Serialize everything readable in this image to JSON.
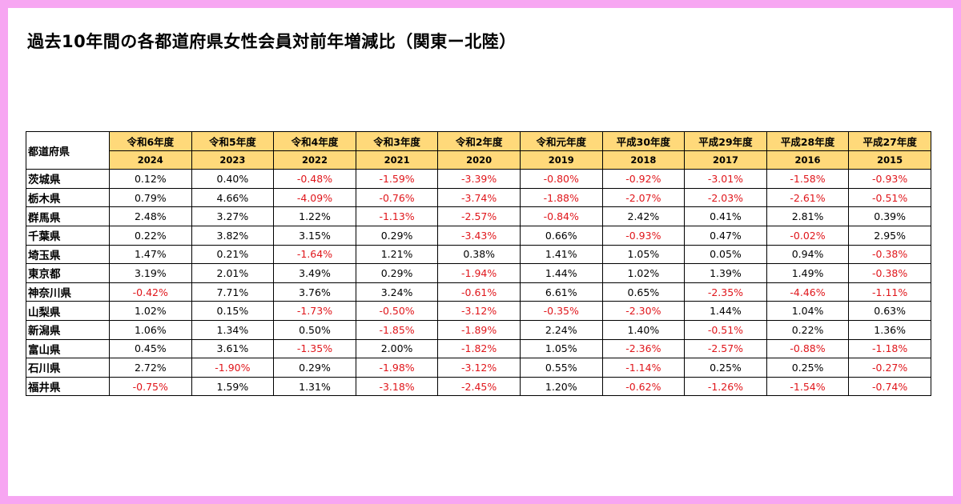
{
  "title": "過去10年間の各都道府県女性会員対前年増減比（関東ー北陸）",
  "table": {
    "corner_label": "都道府県",
    "eras": [
      "令和6年度",
      "令和5年度",
      "令和4年度",
      "令和3年度",
      "令和2年度",
      "令和元年度",
      "平成30年度",
      "平成29年度",
      "平成28年度",
      "平成27年度"
    ],
    "years": [
      "2024",
      "2023",
      "2022",
      "2021",
      "2020",
      "2019",
      "2018",
      "2017",
      "2016",
      "2015"
    ],
    "rows": [
      {
        "pref": "茨城県",
        "values": [
          "0.12%",
          "0.40%",
          "-0.48%",
          "-1.59%",
          "-3.39%",
          "-0.80%",
          "-0.92%",
          "-3.01%",
          "-1.58%",
          "-0.93%"
        ]
      },
      {
        "pref": "栃木県",
        "values": [
          "0.79%",
          "4.66%",
          "-4.09%",
          "-0.76%",
          "-3.74%",
          "-1.88%",
          "-2.07%",
          "-2.03%",
          "-2.61%",
          "-0.51%"
        ]
      },
      {
        "pref": "群馬県",
        "values": [
          "2.48%",
          "3.27%",
          "1.22%",
          "-1.13%",
          "-2.57%",
          "-0.84%",
          "2.42%",
          "0.41%",
          "2.81%",
          "0.39%"
        ]
      },
      {
        "pref": "千葉県",
        "values": [
          "0.22%",
          "3.82%",
          "3.15%",
          "0.29%",
          "-3.43%",
          "0.66%",
          "-0.93%",
          "0.47%",
          "-0.02%",
          "2.95%"
        ]
      },
      {
        "pref": "埼玉県",
        "values": [
          "1.47%",
          "0.21%",
          "-1.64%",
          "1.21%",
          "0.38%",
          "1.41%",
          "1.05%",
          "0.05%",
          "0.94%",
          "-0.38%"
        ]
      },
      {
        "pref": "東京都",
        "values": [
          "3.19%",
          "2.01%",
          "3.49%",
          "0.29%",
          "-1.94%",
          "1.44%",
          "1.02%",
          "1.39%",
          "1.49%",
          "-0.38%"
        ]
      },
      {
        "pref": "神奈川県",
        "values": [
          "-0.42%",
          "7.71%",
          "3.76%",
          "3.24%",
          "-0.61%",
          "6.61%",
          "0.65%",
          "-2.35%",
          "-4.46%",
          "-1.11%"
        ]
      },
      {
        "pref": "山梨県",
        "values": [
          "1.02%",
          "0.15%",
          "-1.73%",
          "-0.50%",
          "-3.12%",
          "-0.35%",
          "-2.30%",
          "1.44%",
          "1.04%",
          "0.63%"
        ]
      },
      {
        "pref": "新潟県",
        "values": [
          "1.06%",
          "1.34%",
          "0.50%",
          "-1.85%",
          "-1.89%",
          "2.24%",
          "1.40%",
          "-0.51%",
          "0.22%",
          "1.36%"
        ]
      },
      {
        "pref": "富山県",
        "values": [
          "0.45%",
          "3.61%",
          "-1.35%",
          "2.00%",
          "-1.82%",
          "1.05%",
          "-2.36%",
          "-2.57%",
          "-0.88%",
          "-1.18%"
        ]
      },
      {
        "pref": "石川県",
        "values": [
          "2.72%",
          "-1.90%",
          "0.29%",
          "-1.98%",
          "-3.12%",
          "0.55%",
          "-1.14%",
          "0.25%",
          "0.25%",
          "-0.27%"
        ]
      },
      {
        "pref": "福井県",
        "values": [
          "-0.75%",
          "1.59%",
          "1.31%",
          "-3.18%",
          "-2.45%",
          "1.20%",
          "-0.62%",
          "-1.26%",
          "-1.54%",
          "-0.74%"
        ]
      }
    ]
  },
  "colors": {
    "header_fill": "#ffd97a",
    "negative_text": "#e0161b",
    "page_border": "#f7a6f2"
  }
}
